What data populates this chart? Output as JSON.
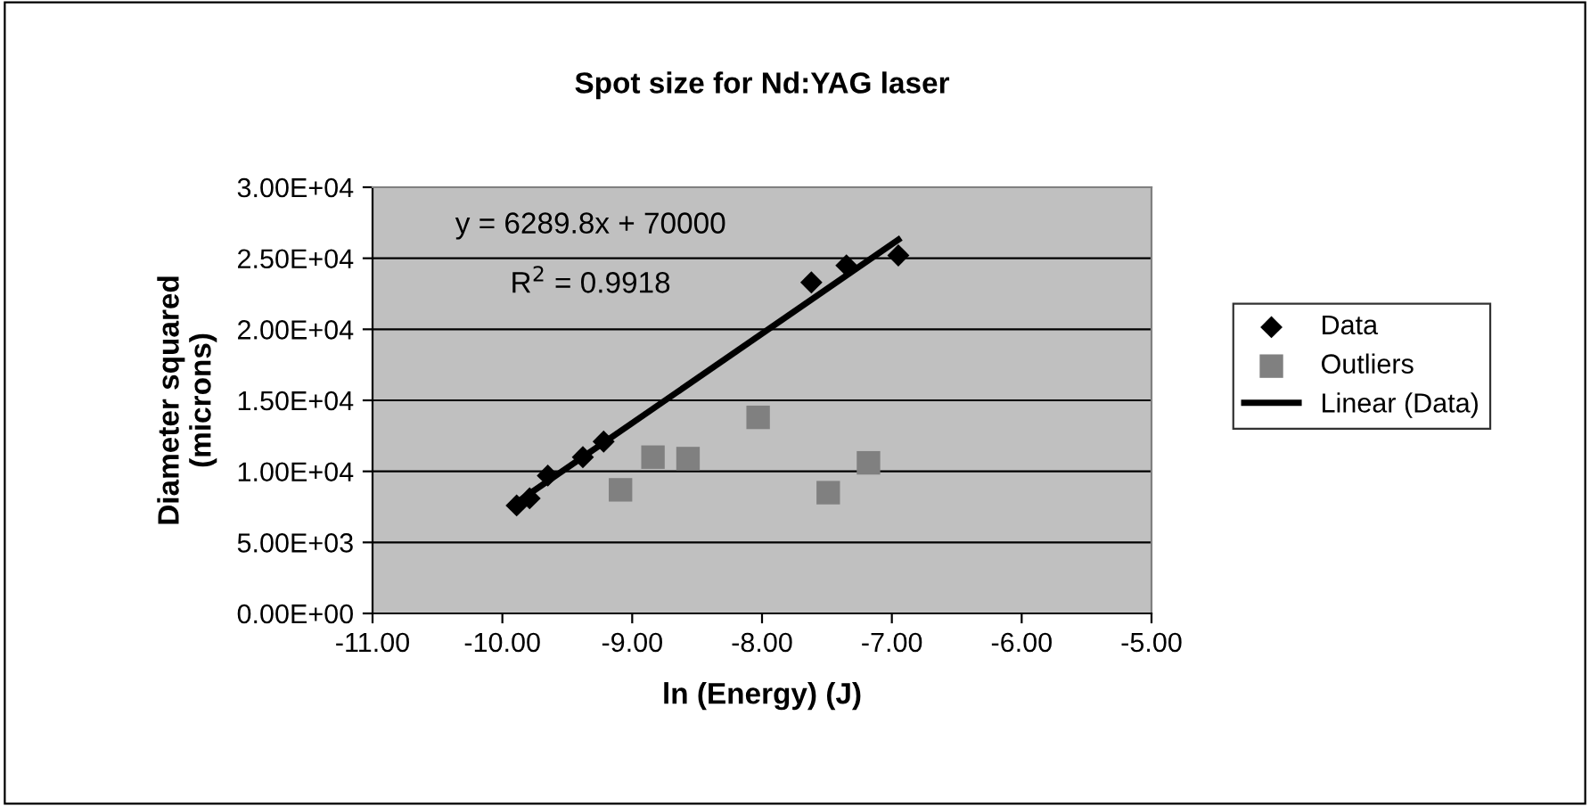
{
  "chart_data": {
    "type": "scatter",
    "title": "Spot size for Nd:YAG laser",
    "xlabel": "ln (Energy) (J)",
    "ylabel": "Diameter squared\n(microns)",
    "series": [
      {
        "name": "Data",
        "marker": "diamond",
        "color": "#000000",
        "x": [
          -9.89,
          -9.79,
          -9.65,
          -9.38,
          -9.22,
          -7.62,
          -7.35,
          -6.95
        ],
        "values": [
          7600,
          8100,
          9700,
          11000,
          12100,
          23300,
          24500,
          25200
        ]
      },
      {
        "name": "Outliers",
        "marker": "square",
        "color": "#808080",
        "x": [
          -9.09,
          -8.84,
          -8.57,
          -8.03,
          -7.49,
          -7.18
        ],
        "values": [
          8700,
          11000,
          10900,
          13800,
          8500,
          10600
        ]
      },
      {
        "name": "Linear (Data)",
        "type": "line",
        "marker": "none",
        "line_style": "solid",
        "color": "#000000",
        "x": [
          -9.89,
          -6.95
        ],
        "values": [
          7800,
          26300
        ]
      }
    ],
    "annotations": [
      "y = 6289.8x + 70000",
      "R$^{2}$ = 0.9918"
    ],
    "xlim": [
      -11,
      -5
    ],
    "xticks": [
      {
        "value": -11,
        "label": "-11.00"
      },
      {
        "value": -10,
        "label": "-10.00"
      },
      {
        "value": -9,
        "label": "-9.00"
      },
      {
        "value": -8,
        "label": "-8.00"
      },
      {
        "value": -7,
        "label": "-7.00"
      },
      {
        "value": -6,
        "label": "-6.00"
      },
      {
        "value": -5,
        "label": "-5.00"
      }
    ],
    "ylim": [
      0,
      30000
    ],
    "yticks": [
      {
        "value": 0,
        "label": "0.00E+00"
      },
      {
        "value": 5000,
        "label": "5.00E+03"
      },
      {
        "value": 10000,
        "label": "1.00E+04"
      },
      {
        "value": 15000,
        "label": "1.50E+04"
      },
      {
        "value": 20000,
        "label": "2.00E+04"
      },
      {
        "value": 25000,
        "label": "2.50E+04"
      },
      {
        "value": 30000,
        "label": "3.00E+04"
      }
    ],
    "grid": "y",
    "legend": "right"
  }
}
